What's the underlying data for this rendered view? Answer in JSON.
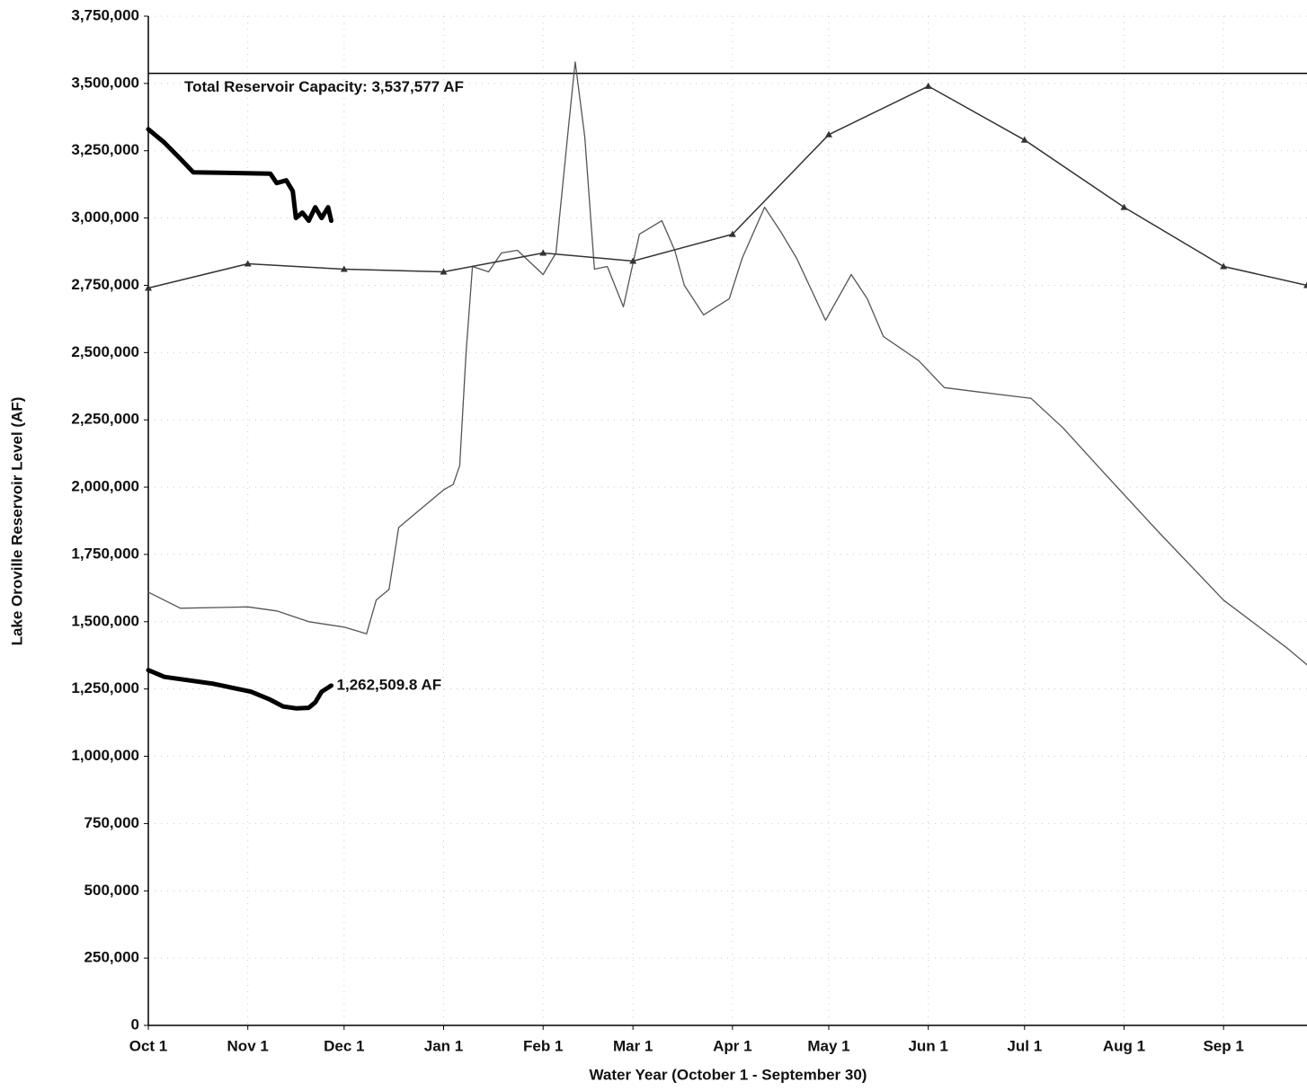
{
  "chart_data": {
    "type": "line",
    "x_label": "Water Year (October 1 - September 30)",
    "y_label": "Lake Oroville Reservoir Level (AF)",
    "xlim": [
      0,
      361
    ],
    "xticks": [
      {
        "value": 0,
        "label": "Oct 1"
      },
      {
        "value": 31,
        "label": "Nov 1"
      },
      {
        "value": 61,
        "label": "Dec 1"
      },
      {
        "value": 92,
        "label": "Jan 1"
      },
      {
        "value": 123,
        "label": "Feb 1"
      },
      {
        "value": 151,
        "label": "Mar 1"
      },
      {
        "value": 182,
        "label": "Apr 1"
      },
      {
        "value": 212,
        "label": "May 1"
      },
      {
        "value": 243,
        "label": "Jun 1"
      },
      {
        "value": 273,
        "label": "Jul 1"
      },
      {
        "value": 304,
        "label": "Aug 1"
      },
      {
        "value": 335,
        "label": "Sep 1"
      }
    ],
    "ylim": [
      0,
      3750000
    ],
    "yticks": [
      0,
      {
        "value": 250000,
        "label": "250,000"
      },
      {
        "value": 500000,
        "label": "500,000"
      },
      {
        "value": 750000,
        "label": "750,000"
      },
      {
        "value": 1000000,
        "label": "1,000,000"
      },
      {
        "value": 1250000,
        "label": "1,250,000"
      },
      {
        "value": 1500000,
        "label": "1,500,000"
      },
      {
        "value": 1750000,
        "label": "1,750,000"
      },
      {
        "value": 2000000,
        "label": "2,000,000"
      },
      {
        "value": 2250000,
        "label": "2,250,000"
      },
      {
        "value": 2500000,
        "label": "2,500,000"
      },
      {
        "value": 2750000,
        "label": "2,750,000"
      },
      {
        "value": 3000000,
        "label": "3,000,000"
      },
      {
        "value": 3250000,
        "label": "3,250,000"
      },
      {
        "value": 3500000,
        "label": "3,500,000"
      },
      {
        "value": 3750000,
        "label": "3,750,000"
      }
    ],
    "grid": true,
    "reference_line": {
      "value": 3537577,
      "label": "Total Reservoir Capacity: 3,537,577 AF",
      "color": "#000000"
    },
    "series": [
      {
        "color": "#000000",
        "width": 5,
        "x": [
          0,
          5,
          20,
          32,
          38,
          42,
          46,
          50,
          52,
          54,
          57
        ],
        "values": [
          1320000,
          1295000,
          1270000,
          1240000,
          1210000,
          1185000,
          1178000,
          1180000,
          1200000,
          1240000,
          1262509.8
        ],
        "end_label": "1,262,509.8 AF"
      },
      {
        "color": "#000000",
        "width": 5,
        "x": [
          0,
          5,
          10,
          14,
          38,
          40,
          43,
          45,
          46,
          48,
          50,
          52,
          54,
          56,
          57
        ],
        "values": [
          3330000,
          3280000,
          3220000,
          3170000,
          3165000,
          3130000,
          3140000,
          3100000,
          3000000,
          3020000,
          2990000,
          3040000,
          3000000,
          3040000,
          2990000
        ]
      },
      {
        "color": "#555555",
        "width": 1.3,
        "x": [
          0,
          10,
          31,
          40,
          50,
          61,
          68,
          71,
          75,
          78,
          85,
          92,
          95,
          97,
          99,
          101,
          106,
          110,
          115,
          123,
          127,
          131,
          133,
          136,
          139,
          143,
          148,
          153,
          160,
          164,
          167,
          173,
          181,
          185,
          192,
          197,
          202,
          211,
          219,
          224,
          229,
          240,
          248,
          258,
          275,
          285,
          298,
          315,
          335,
          355,
          361
        ],
        "values": [
          1610000,
          1550000,
          1555000,
          1540000,
          1500000,
          1480000,
          1455000,
          1580000,
          1620000,
          1850000,
          1920000,
          1990000,
          2010000,
          2080000,
          2500000,
          2820000,
          2800000,
          2870000,
          2880000,
          2790000,
          2870000,
          3350000,
          3580000,
          3300000,
          2810000,
          2820000,
          2670000,
          2940000,
          2990000,
          2880000,
          2750000,
          2640000,
          2700000,
          2850000,
          3040000,
          2950000,
          2850000,
          2620000,
          2790000,
          2700000,
          2560000,
          2470000,
          2370000,
          2355000,
          2330000,
          2220000,
          2050000,
          1830000,
          1580000,
          1400000,
          1340000
        ]
      },
      {
        "color": "#333333",
        "width": 1.5,
        "marker": "triangle",
        "x": [
          0,
          31,
          61,
          92,
          123,
          151,
          182,
          212,
          243,
          273,
          304,
          335,
          361
        ],
        "values": [
          2740000,
          2830000,
          2810000,
          2800000,
          2870000,
          2840000,
          2940000,
          3310000,
          3490000,
          3290000,
          3040000,
          2820000,
          2750000
        ]
      }
    ]
  }
}
